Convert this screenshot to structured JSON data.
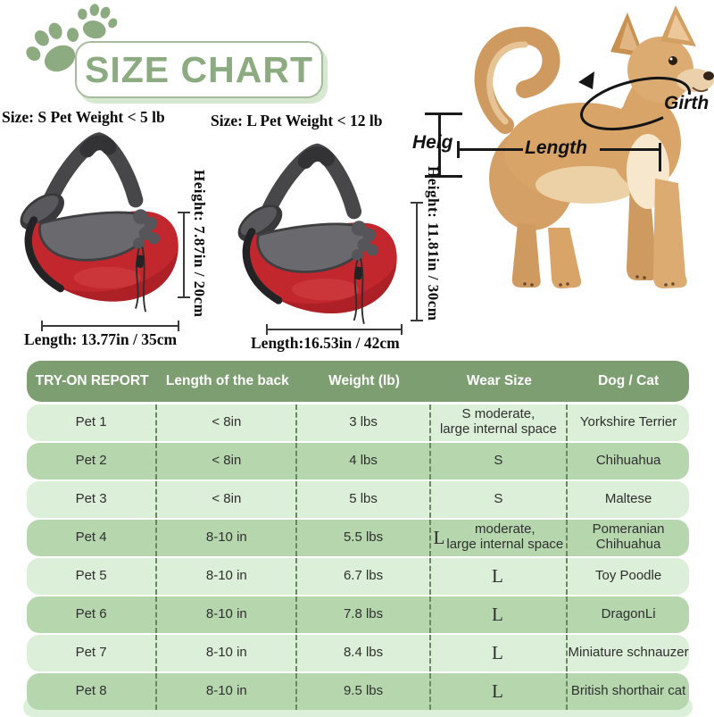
{
  "header": {
    "title": "SIZE CHART"
  },
  "sizes": {
    "s": {
      "label": "Size: S Pet Weight < 5 lb",
      "height_label": "Height: 7.87in / 20cm",
      "length_label": "Length: 13.77in / 35cm"
    },
    "l": {
      "label": "Size: L Pet Weight < 12 lb",
      "height_label": "Height: 11.81in / 30cm",
      "length_label": "Length:16.53in / 42cm"
    }
  },
  "dog_diagram": {
    "height_label": "Heig",
    "length_label": "Length",
    "girth_label": "Girth"
  },
  "table": {
    "headers": [
      "TRY-ON REPORT",
      "Length of the back",
      "Weight (lb)",
      "Wear Size",
      "Dog / Cat"
    ],
    "rows": [
      {
        "pet": "Pet 1",
        "back_length": "< 8in",
        "weight": "3 lbs",
        "wear_size": "S moderate,\nlarge internal space",
        "breed": "Yorkshire Terrier"
      },
      {
        "pet": "Pet 2",
        "back_length": "< 8in",
        "weight": "4 lbs",
        "wear_size": "S",
        "breed": "Chihuahua"
      },
      {
        "pet": "Pet 3",
        "back_length": "< 8in",
        "weight": "5 lbs",
        "wear_size": "S",
        "breed": "Maltese"
      },
      {
        "pet": "Pet 4",
        "back_length": "8-10 in",
        "weight": "5.5 lbs",
        "wear_size": "L moderate,\nlarge internal space",
        "breed": "Pomeranian\nChihuahua"
      },
      {
        "pet": "Pet 5",
        "back_length": "8-10 in",
        "weight": "6.7 lbs",
        "wear_size": "L",
        "breed": "Toy Poodle"
      },
      {
        "pet": "Pet 6",
        "back_length": "8-10 in",
        "weight": "7.8 lbs",
        "wear_size": "L",
        "breed": "DragonLi"
      },
      {
        "pet": "Pet 7",
        "back_length": "8-10 in",
        "weight": "8.4 lbs",
        "wear_size": "L",
        "breed": "Miniature schnauzer"
      },
      {
        "pet": "Pet 8",
        "back_length": "8-10 in",
        "weight": "9.5 lbs",
        "wear_size": "L",
        "breed": "British shorthair cat"
      }
    ]
  },
  "colors": {
    "accent_green": "#8cab81",
    "table_header_green": "#7c9e71",
    "row_light_green": "#dcefd8",
    "row_dark_green": "#b6d7ae",
    "sling_red": "#c1272d",
    "strap_gray": "#474749"
  }
}
